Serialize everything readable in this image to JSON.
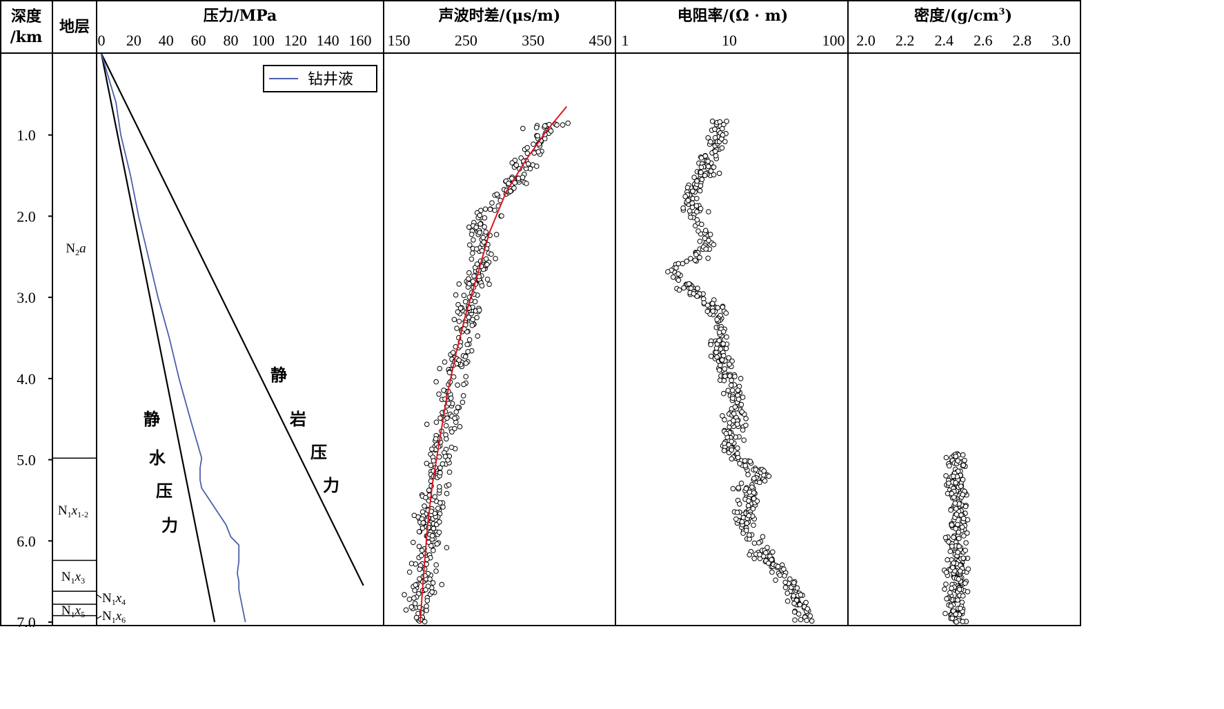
{
  "tracks": {
    "depth": {
      "title_line1": "深度",
      "title_line2": "/km"
    },
    "strata": {
      "title": "地层"
    },
    "pressure": {
      "title": "压力/MPa"
    },
    "sonic": {
      "title": "声波时差/(μs/m)"
    },
    "resistivity": {
      "title": "电阻率/(Ω · m)"
    },
    "density": {
      "title_main": "密度/(g/cm",
      "title_sup": "3",
      "title_close": ")"
    }
  },
  "formations": [
    {
      "base": "N",
      "sub1": "2",
      "ital": "a",
      "sub2": "",
      "top_km": 0.0,
      "bottom_km": 4.98
    },
    {
      "base": "N",
      "sub1": "1",
      "ital": "x",
      "sub2": "1-2",
      "top_km": 4.98,
      "bottom_km": 6.24
    },
    {
      "base": "N",
      "sub1": "1",
      "ital": "x",
      "sub2": "3",
      "top_km": 6.24,
      "bottom_km": 6.62
    },
    {
      "base": "N",
      "sub1": "1",
      "ital": "x",
      "sub2": "4",
      "top_km": 6.62,
      "bottom_km": 6.78
    },
    {
      "base": "N",
      "sub1": "1",
      "ital": "x",
      "sub2": "5",
      "top_km": 6.78,
      "bottom_km": 6.92
    },
    {
      "base": "N",
      "sub1": "1",
      "ital": "x",
      "sub2": "6",
      "top_km": 6.92,
      "bottom_km": 7.0
    }
  ],
  "annotations": {
    "hydrostatic": [
      "静",
      "水",
      "压",
      "力"
    ],
    "lithostatic": [
      "静",
      "岩",
      "压",
      "力"
    ]
  },
  "legend": {
    "label": "钻井液"
  },
  "chart_data": [
    {
      "type": "line",
      "track": "pressure",
      "xlabel": "压力/MPa",
      "ylabel": "深度/km",
      "xlim": [
        0,
        160
      ],
      "ylim": [
        7.0,
        0.0
      ],
      "x_ticks": [
        0,
        20,
        40,
        60,
        80,
        100,
        120,
        140,
        160
      ],
      "y_ticks": [
        1.0,
        2.0,
        3.0,
        4.0,
        5.0,
        6.0,
        7.0
      ],
      "legend_position": "top-right",
      "series": [
        {
          "name": "",
          "color": "#000000",
          "points": [
            [
              0,
              0.0
            ],
            [
              70,
              7.0
            ]
          ]
        },
        {
          "name": "",
          "color": "#000000",
          "points": [
            [
              0,
              0.0
            ],
            [
              162,
              6.55
            ]
          ]
        },
        {
          "name": "钻井液",
          "color": "#4a5fa8",
          "points": [
            [
              0,
              0.0
            ],
            [
              9,
              0.6
            ],
            [
              12,
              1.0
            ],
            [
              18,
              1.5
            ],
            [
              23,
              2.0
            ],
            [
              29,
              2.5
            ],
            [
              35,
              3.0
            ],
            [
              42,
              3.5
            ],
            [
              48,
              4.0
            ],
            [
              55,
              4.5
            ],
            [
              62,
              4.98
            ],
            [
              61,
              5.1
            ],
            [
              61,
              5.25
            ],
            [
              62,
              5.35
            ],
            [
              67,
              5.5
            ],
            [
              72,
              5.65
            ],
            [
              77,
              5.8
            ],
            [
              80,
              5.95
            ],
            [
              85,
              6.05
            ],
            [
              85,
              6.25
            ],
            [
              84,
              6.4
            ],
            [
              85,
              6.5
            ],
            [
              85,
              6.6
            ],
            [
              87,
              6.8
            ],
            [
              89,
              7.0
            ]
          ]
        }
      ]
    },
    {
      "type": "scatter",
      "track": "sonic",
      "xlabel": "声波时差/(μs/m)",
      "xlim": [
        150,
        450
      ],
      "ylim": [
        7.0,
        0.0
      ],
      "x_ticks": [
        150,
        250,
        350,
        450
      ],
      "trend_line": {
        "color": "#e0141e",
        "points": [
          [
            400,
            0.65
          ],
          [
            370,
            0.95
          ],
          [
            340,
            1.3
          ],
          [
            310,
            1.7
          ],
          [
            285,
            2.2
          ],
          [
            268,
            2.7
          ],
          [
            250,
            3.2
          ],
          [
            235,
            3.7
          ],
          [
            222,
            4.2
          ],
          [
            210,
            4.8
          ],
          [
            200,
            5.3
          ],
          [
            193,
            5.8
          ],
          [
            188,
            6.3
          ],
          [
            184,
            6.75
          ],
          [
            182,
            7.0
          ]
        ]
      },
      "point_cloud": {
        "count": 520,
        "depth_range": [
          0.85,
          7.0
        ],
        "scatter_sd": 10,
        "centerline": [
          [
            375,
            0.85
          ],
          [
            340,
            1.3
          ],
          [
            305,
            1.75
          ],
          [
            268,
            2.1
          ],
          [
            272,
            2.6
          ],
          [
            258,
            3.0
          ],
          [
            245,
            3.5
          ],
          [
            232,
            4.0
          ],
          [
            222,
            4.5
          ],
          [
            214,
            4.9
          ],
          [
            205,
            5.2
          ],
          [
            198,
            5.5
          ],
          [
            196,
            5.9
          ],
          [
            192,
            6.2
          ],
          [
            184,
            6.6
          ],
          [
            183,
            7.0
          ]
        ]
      }
    },
    {
      "type": "scatter",
      "track": "resistivity",
      "xlabel": "电阻率/(Ω · m)",
      "xscale": "log",
      "xlim": [
        1,
        100
      ],
      "ylim": [
        7.0,
        0.0
      ],
      "x_ticks": [
        1,
        10,
        100
      ],
      "point_cloud": {
        "count": 600,
        "depth_range": [
          0.82,
          7.0
        ],
        "log_scatter_sd": 0.05,
        "centerline": [
          [
            8.5,
            0.85
          ],
          [
            7.0,
            1.2
          ],
          [
            5.5,
            1.5
          ],
          [
            4.0,
            1.75
          ],
          [
            4.5,
            2.0
          ],
          [
            6.0,
            2.3
          ],
          [
            5.5,
            2.5
          ],
          [
            3.0,
            2.6
          ],
          [
            2.8,
            2.75
          ],
          [
            4.0,
            2.9
          ],
          [
            6.5,
            3.1
          ],
          [
            8.0,
            3.3
          ],
          [
            8.0,
            3.6
          ],
          [
            9.0,
            3.9
          ],
          [
            11.0,
            4.2
          ],
          [
            12.5,
            4.4
          ],
          [
            10.5,
            4.6
          ],
          [
            10.5,
            4.9
          ],
          [
            16.0,
            5.1
          ],
          [
            22.0,
            5.2
          ],
          [
            14.0,
            5.35
          ],
          [
            16.0,
            5.5
          ],
          [
            13.0,
            5.75
          ],
          [
            20.0,
            6.15
          ],
          [
            28.0,
            6.3
          ],
          [
            40.0,
            6.6
          ],
          [
            50.0,
            6.85
          ],
          [
            55.0,
            7.0
          ]
        ]
      }
    },
    {
      "type": "scatter",
      "track": "density",
      "xlabel": "密度/(g/cm3)",
      "xlim": [
        2.0,
        3.0
      ],
      "ylim": [
        7.0,
        0.0
      ],
      "x_ticks": [
        2.0,
        2.2,
        2.4,
        2.6,
        2.8,
        3.0
      ],
      "point_cloud": {
        "count": 300,
        "depth_range": [
          4.92,
          7.0
        ],
        "scatter_sd": 0.025,
        "centerline": [
          [
            2.47,
            4.95
          ],
          [
            2.46,
            5.2
          ],
          [
            2.47,
            5.6
          ],
          [
            2.46,
            6.0
          ],
          [
            2.47,
            6.5
          ],
          [
            2.46,
            7.0
          ]
        ]
      }
    }
  ]
}
